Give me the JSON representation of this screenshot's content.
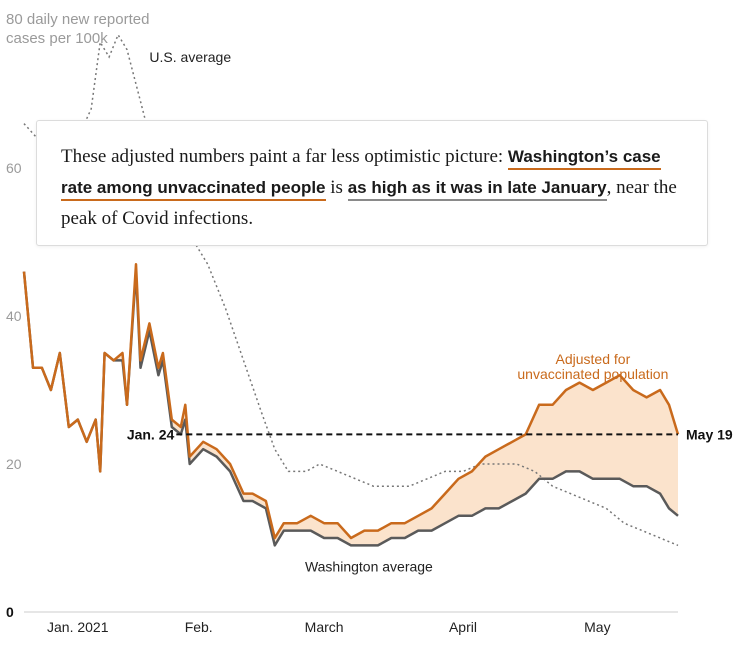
{
  "chart_data": {
    "type": "line",
    "title": "",
    "ylabel": "80 daily new reported cases per 100k",
    "xlabel": "",
    "ylim": [
      0,
      80
    ],
    "xlim": [
      "2020-12-24",
      "2021-05-19"
    ],
    "yticks": [
      "0",
      "20",
      "40",
      "60"
    ],
    "ytick_values": [
      0,
      20,
      40,
      60
    ],
    "xticks": [
      {
        "label": "Jan. 2021",
        "date": "2021-01-05"
      },
      {
        "label": "Feb.",
        "date": "2021-02-01"
      },
      {
        "label": "March",
        "date": "2021-03-01"
      },
      {
        "label": "April",
        "date": "2021-04-01"
      },
      {
        "label": "May",
        "date": "2021-05-01"
      }
    ],
    "grid": false,
    "series": [
      {
        "name": "Adjusted for unvaccinated population",
        "color": "#c96a1c",
        "points": [
          [
            "2020-12-24",
            46
          ],
          [
            "2020-12-26",
            33
          ],
          [
            "2020-12-28",
            33
          ],
          [
            "2020-12-30",
            30
          ],
          [
            "2021-01-01",
            35
          ],
          [
            "2021-01-03",
            25
          ],
          [
            "2021-01-05",
            26
          ],
          [
            "2021-01-07",
            23
          ],
          [
            "2021-01-09",
            26
          ],
          [
            "2021-01-10",
            19
          ],
          [
            "2021-01-11",
            35
          ],
          [
            "2021-01-13",
            34
          ],
          [
            "2021-01-15",
            35
          ],
          [
            "2021-01-16",
            28
          ],
          [
            "2021-01-18",
            47
          ],
          [
            "2021-01-19",
            34
          ],
          [
            "2021-01-21",
            39
          ],
          [
            "2021-01-23",
            33
          ],
          [
            "2021-01-24",
            35
          ],
          [
            "2021-01-26",
            26
          ],
          [
            "2021-01-28",
            25
          ],
          [
            "2021-01-29",
            28
          ],
          [
            "2021-01-30",
            21
          ],
          [
            "2021-02-02",
            23
          ],
          [
            "2021-02-05",
            22
          ],
          [
            "2021-02-08",
            20
          ],
          [
            "2021-02-11",
            16
          ],
          [
            "2021-02-13",
            16
          ],
          [
            "2021-02-16",
            15
          ],
          [
            "2021-02-18",
            10
          ],
          [
            "2021-02-20",
            12
          ],
          [
            "2021-02-23",
            12
          ],
          [
            "2021-02-26",
            13
          ],
          [
            "2021-03-01",
            12
          ],
          [
            "2021-03-04",
            12
          ],
          [
            "2021-03-07",
            10
          ],
          [
            "2021-03-10",
            11
          ],
          [
            "2021-03-13",
            11
          ],
          [
            "2021-03-16",
            12
          ],
          [
            "2021-03-19",
            12
          ],
          [
            "2021-03-22",
            13
          ],
          [
            "2021-03-25",
            14
          ],
          [
            "2021-03-28",
            16
          ],
          [
            "2021-03-31",
            18
          ],
          [
            "2021-04-03",
            19
          ],
          [
            "2021-04-06",
            21
          ],
          [
            "2021-04-09",
            22
          ],
          [
            "2021-04-12",
            23
          ],
          [
            "2021-04-15",
            24
          ],
          [
            "2021-04-18",
            28
          ],
          [
            "2021-04-21",
            28
          ],
          [
            "2021-04-24",
            30
          ],
          [
            "2021-04-27",
            31
          ],
          [
            "2021-04-30",
            30
          ],
          [
            "2021-05-03",
            31
          ],
          [
            "2021-05-06",
            32
          ],
          [
            "2021-05-09",
            30
          ],
          [
            "2021-05-12",
            29
          ],
          [
            "2021-05-15",
            30
          ],
          [
            "2021-05-17",
            28
          ],
          [
            "2021-05-19",
            24
          ]
        ]
      },
      {
        "name": "Washington average",
        "color": "#5a5a5a",
        "points": [
          [
            "2020-12-24",
            46
          ],
          [
            "2020-12-26",
            33
          ],
          [
            "2020-12-28",
            33
          ],
          [
            "2020-12-30",
            30
          ],
          [
            "2021-01-01",
            35
          ],
          [
            "2021-01-03",
            25
          ],
          [
            "2021-01-05",
            26
          ],
          [
            "2021-01-07",
            23
          ],
          [
            "2021-01-09",
            26
          ],
          [
            "2021-01-10",
            19
          ],
          [
            "2021-01-11",
            35
          ],
          [
            "2021-01-13",
            34
          ],
          [
            "2021-01-15",
            34
          ],
          [
            "2021-01-16",
            28
          ],
          [
            "2021-01-18",
            46
          ],
          [
            "2021-01-19",
            33
          ],
          [
            "2021-01-21",
            38
          ],
          [
            "2021-01-23",
            32
          ],
          [
            "2021-01-24",
            34
          ],
          [
            "2021-01-26",
            25
          ],
          [
            "2021-01-28",
            24
          ],
          [
            "2021-01-29",
            26
          ],
          [
            "2021-01-30",
            20
          ],
          [
            "2021-02-02",
            22
          ],
          [
            "2021-02-05",
            21
          ],
          [
            "2021-02-08",
            19
          ],
          [
            "2021-02-11",
            15
          ],
          [
            "2021-02-13",
            15
          ],
          [
            "2021-02-16",
            14
          ],
          [
            "2021-02-18",
            9
          ],
          [
            "2021-02-20",
            11
          ],
          [
            "2021-02-23",
            11
          ],
          [
            "2021-02-26",
            11
          ],
          [
            "2021-03-01",
            10
          ],
          [
            "2021-03-04",
            10
          ],
          [
            "2021-03-07",
            9
          ],
          [
            "2021-03-10",
            9
          ],
          [
            "2021-03-13",
            9
          ],
          [
            "2021-03-16",
            10
          ],
          [
            "2021-03-19",
            10
          ],
          [
            "2021-03-22",
            11
          ],
          [
            "2021-03-25",
            11
          ],
          [
            "2021-03-28",
            12
          ],
          [
            "2021-03-31",
            13
          ],
          [
            "2021-04-03",
            13
          ],
          [
            "2021-04-06",
            14
          ],
          [
            "2021-04-09",
            14
          ],
          [
            "2021-04-12",
            15
          ],
          [
            "2021-04-15",
            16
          ],
          [
            "2021-04-18",
            18
          ],
          [
            "2021-04-21",
            18
          ],
          [
            "2021-04-24",
            19
          ],
          [
            "2021-04-27",
            19
          ],
          [
            "2021-04-30",
            18
          ],
          [
            "2021-05-03",
            18
          ],
          [
            "2021-05-06",
            18
          ],
          [
            "2021-05-09",
            17
          ],
          [
            "2021-05-12",
            17
          ],
          [
            "2021-05-15",
            16
          ],
          [
            "2021-05-17",
            14
          ],
          [
            "2021-05-19",
            13
          ]
        ]
      },
      {
        "name": "U.S. average",
        "color": "#777777",
        "dashed": true,
        "points": [
          [
            "2020-12-24",
            66
          ],
          [
            "2020-12-27",
            64
          ],
          [
            "2020-12-30",
            66
          ],
          [
            "2021-01-02",
            66
          ],
          [
            "2021-01-05",
            64
          ],
          [
            "2021-01-08",
            68
          ],
          [
            "2021-01-10",
            77
          ],
          [
            "2021-01-12",
            75
          ],
          [
            "2021-01-14",
            78
          ],
          [
            "2021-01-16",
            76
          ],
          [
            "2021-01-19",
            69
          ],
          [
            "2021-01-22",
            62
          ],
          [
            "2021-01-26",
            56
          ],
          [
            "2021-01-30",
            51
          ],
          [
            "2021-02-03",
            47
          ],
          [
            "2021-02-07",
            41
          ],
          [
            "2021-02-11",
            34
          ],
          [
            "2021-02-15",
            27
          ],
          [
            "2021-02-18",
            22
          ],
          [
            "2021-02-21",
            19
          ],
          [
            "2021-02-25",
            19
          ],
          [
            "2021-02-28",
            20
          ],
          [
            "2021-03-04",
            19
          ],
          [
            "2021-03-08",
            18
          ],
          [
            "2021-03-12",
            17
          ],
          [
            "2021-03-16",
            17
          ],
          [
            "2021-03-20",
            17
          ],
          [
            "2021-03-24",
            18
          ],
          [
            "2021-03-28",
            19
          ],
          [
            "2021-04-01",
            19
          ],
          [
            "2021-04-05",
            20
          ],
          [
            "2021-04-09",
            20
          ],
          [
            "2021-04-13",
            20
          ],
          [
            "2021-04-17",
            19
          ],
          [
            "2021-04-21",
            17
          ],
          [
            "2021-04-25",
            16
          ],
          [
            "2021-04-29",
            15
          ],
          [
            "2021-05-03",
            14
          ],
          [
            "2021-05-07",
            12
          ],
          [
            "2021-05-11",
            11
          ],
          [
            "2021-05-15",
            10
          ],
          [
            "2021-05-19",
            9
          ]
        ]
      }
    ],
    "annotations": {
      "us_label": "U.S. average",
      "adjusted_line1": "Adjusted for",
      "adjusted_line2": "unvaccinated population",
      "washington_label": "Washington average",
      "reference_value": 24,
      "reference_start": "Jan. 24",
      "reference_end": "May 19"
    },
    "colors": {
      "adjusted": "#c96a1c",
      "washington": "#5a5a5a",
      "us": "#777777",
      "fill": "#fbe3cc",
      "reference": "#111111"
    }
  },
  "callout": {
    "text_before": "These adjusted numbers paint a far less optimistic picture: ",
    "highlight_orange": "Washington’s case rate among unvaccinated people",
    "text_middle": " is ",
    "highlight_gray": "as high as it was in late January",
    "text_after": ", near the peak of Covid infections."
  }
}
